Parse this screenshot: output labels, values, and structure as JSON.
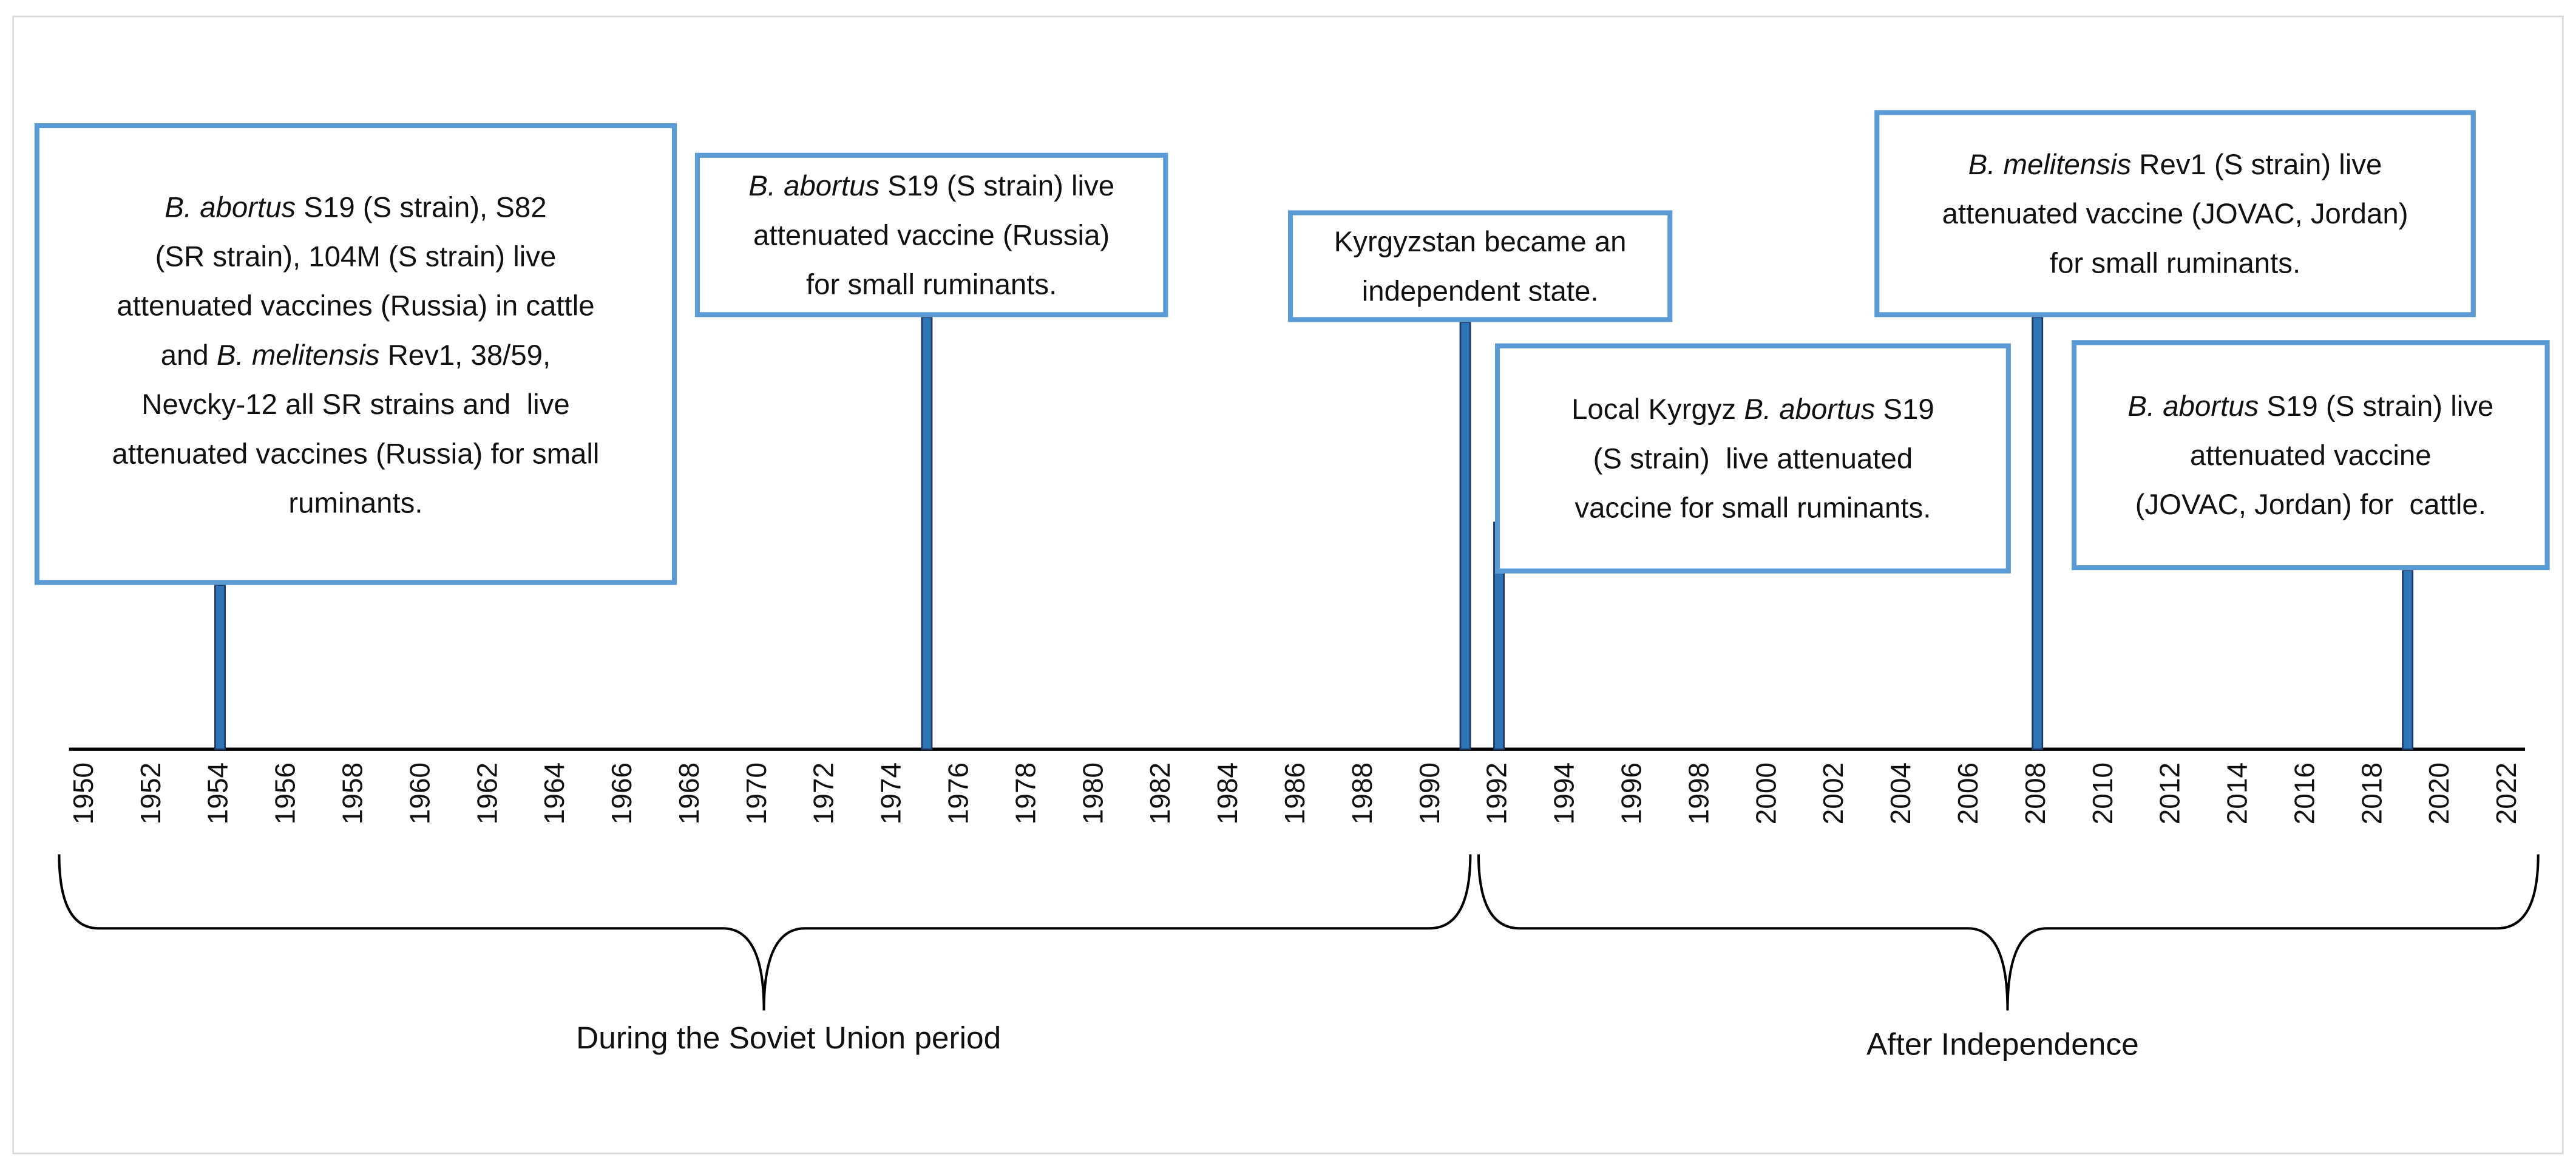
{
  "timeline": {
    "xlim": [
      1950,
      2022
    ],
    "xticks": [
      1950,
      1952,
      1954,
      1956,
      1958,
      1960,
      1962,
      1964,
      1966,
      1968,
      1970,
      1972,
      1974,
      1976,
      1978,
      1980,
      1982,
      1984,
      1986,
      1988,
      1990,
      1992,
      1994,
      1996,
      1998,
      2000,
      2002,
      2004,
      2006,
      2008,
      2010,
      2012,
      2014,
      2016,
      2018,
      2020,
      2022
    ],
    "events": [
      {
        "year": 1954,
        "lines": [
          [
            {
              "text": "B. abortus",
              "italic": true
            },
            {
              "text": " S19 (S strain), S82"
            }
          ],
          [
            {
              "text": "(SR strain), 104M (S strain) live"
            }
          ],
          [
            {
              "text": "attenuated vaccines (Russia) in cattle"
            }
          ],
          [
            {
              "text": "and "
            },
            {
              "text": "B. melitensis",
              "italic": true
            },
            {
              "text": " Rev1, 38/59,"
            }
          ],
          [
            {
              "text": "Nevcky-12 all SR strains and  live"
            }
          ],
          [
            {
              "text": "attenuated vaccines (Russia) for small"
            }
          ],
          [
            {
              "text": "ruminants."
            }
          ]
        ]
      },
      {
        "year": 1975,
        "lines": [
          [
            {
              "text": "B. abortus",
              "italic": true
            },
            {
              "text": " S19 (S strain) live"
            }
          ],
          [
            {
              "text": "attenuated vaccine (Russia)"
            }
          ],
          [
            {
              "text": "for small ruminants."
            }
          ]
        ]
      },
      {
        "year": 1991,
        "lines": [
          [
            {
              "text": "Kyrgyzstan became an"
            }
          ],
          [
            {
              "text": "independent state."
            }
          ]
        ]
      },
      {
        "year": 1992,
        "lines": [
          [
            {
              "text": "Local Kyrgyz "
            },
            {
              "text": "B. abortus",
              "italic": true
            },
            {
              "text": " S19"
            }
          ],
          [
            {
              "text": "(S strain)  live attenuated"
            }
          ],
          [
            {
              "text": "vaccine for small ruminants."
            }
          ]
        ]
      },
      {
        "year": 2008,
        "lines": [
          [
            {
              "text": "B. melitensis",
              "italic": true
            },
            {
              "text": " Rev1 (S strain) live"
            }
          ],
          [
            {
              "text": "attenuated vaccine (JOVAC, Jordan)"
            }
          ],
          [
            {
              "text": "for small ruminants."
            }
          ]
        ]
      },
      {
        "year": 2019,
        "lines": [
          [
            {
              "text": "B. abortus",
              "italic": true
            },
            {
              "text": " S19 (S strain) live"
            }
          ],
          [
            {
              "text": "attenuated vaccine"
            }
          ],
          [
            {
              "text": "(JOVAC, Jordan) for  cattle."
            }
          ]
        ]
      }
    ],
    "periods": [
      {
        "label": "During the Soviet Union period"
      },
      {
        "label": "After Independence"
      }
    ]
  }
}
